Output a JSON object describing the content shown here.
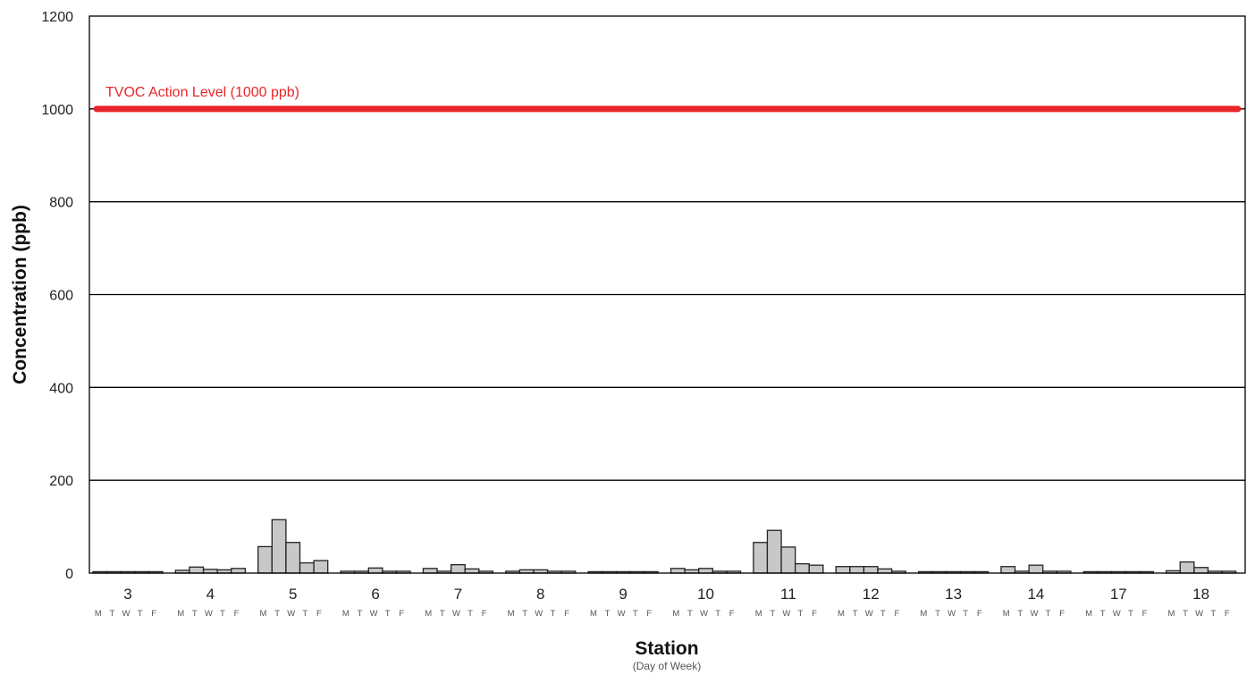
{
  "chart_data": {
    "type": "bar",
    "title": "",
    "xlabel": "Station",
    "xlabel_sub": "(Day of Week)",
    "ylabel": "Concentration (ppb)",
    "ylim": [
      0,
      1200
    ],
    "yticks": [
      0,
      200,
      400,
      600,
      800,
      1000,
      1200
    ],
    "grid": true,
    "colors": {
      "bar_fill": "#c8c8c8",
      "bar_stroke": "#222222",
      "reference_line": "#e8262b"
    },
    "days": [
      "M",
      "T",
      "W",
      "T",
      "F"
    ],
    "stations": [
      {
        "label": "3",
        "values": [
          3,
          3,
          3,
          3,
          3
        ]
      },
      {
        "label": "4",
        "values": [
          6,
          13,
          8,
          7,
          10
        ]
      },
      {
        "label": "5",
        "values": [
          57,
          115,
          66,
          22,
          27
        ]
      },
      {
        "label": "6",
        "values": [
          4,
          4,
          11,
          4,
          4
        ]
      },
      {
        "label": "7",
        "values": [
          10,
          4,
          18,
          9,
          4
        ]
      },
      {
        "label": "8",
        "values": [
          4,
          7,
          7,
          4,
          4
        ]
      },
      {
        "label": "9",
        "values": [
          3,
          3,
          3,
          3,
          3
        ]
      },
      {
        "label": "10",
        "values": [
          10,
          7,
          10,
          4,
          4
        ]
      },
      {
        "label": "11",
        "values": [
          66,
          92,
          56,
          20,
          17
        ]
      },
      {
        "label": "12",
        "values": [
          14,
          14,
          14,
          9,
          4
        ]
      },
      {
        "label": "13",
        "values": [
          3,
          3,
          3,
          3,
          3
        ]
      },
      {
        "label": "14",
        "values": [
          14,
          4,
          17,
          4,
          4
        ]
      },
      {
        "label": "17",
        "values": [
          3,
          3,
          3,
          3,
          3
        ]
      },
      {
        "label": "18",
        "values": [
          5,
          24,
          12,
          4,
          4
        ]
      }
    ],
    "reference_line": {
      "label": "TVOC Action Level (1000 ppb)",
      "value": 1000
    }
  }
}
